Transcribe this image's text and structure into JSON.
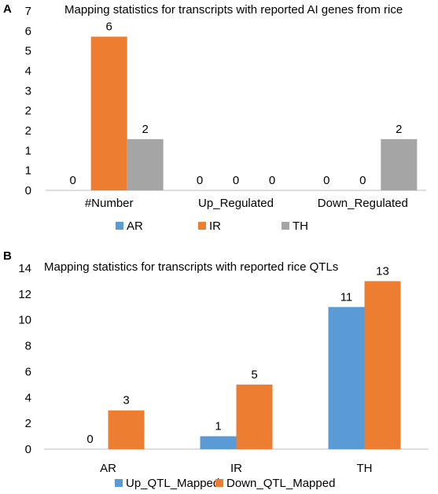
{
  "chart_data": [
    {
      "panel_label": "A",
      "type": "bar",
      "title": "Mapping statistics for transcripts with reported AI genes from rice",
      "categories": [
        "#Number",
        "Up_Regulated",
        "Down_Regulated"
      ],
      "series": [
        {
          "name": "AR",
          "values": [
            0,
            0,
            0
          ],
          "color": "#5b9bd5"
        },
        {
          "name": "IR",
          "values": [
            6,
            0,
            0
          ],
          "color": "#ed7d31"
        },
        {
          "name": "TH",
          "values": [
            2,
            0,
            2
          ],
          "color": "#a5a5a5"
        }
      ],
      "y_ticks": [
        "0",
        "1",
        "1",
        "2",
        "2",
        "3",
        "4",
        "5",
        "6",
        "7"
      ],
      "ylim": [
        0,
        7
      ],
      "grid": false,
      "legend_position": "bottom"
    },
    {
      "panel_label": "B",
      "type": "bar",
      "title": "Mapping statistics for transcripts with reported rice QTLs",
      "categories": [
        "AR",
        "IR",
        "TH"
      ],
      "series": [
        {
          "name": "Up_QTL_Mapped",
          "values": [
            0,
            1,
            11
          ],
          "color": "#5b9bd5"
        },
        {
          "name": "Down_QTL_Mapped",
          "values": [
            3,
            5,
            13
          ],
          "color": "#ed7d31"
        }
      ],
      "y_ticks": [
        "0",
        "2",
        "4",
        "6",
        "8",
        "10",
        "12",
        "14"
      ],
      "ylim": [
        0,
        14
      ],
      "grid": false,
      "legend_position": "bottom"
    }
  ]
}
